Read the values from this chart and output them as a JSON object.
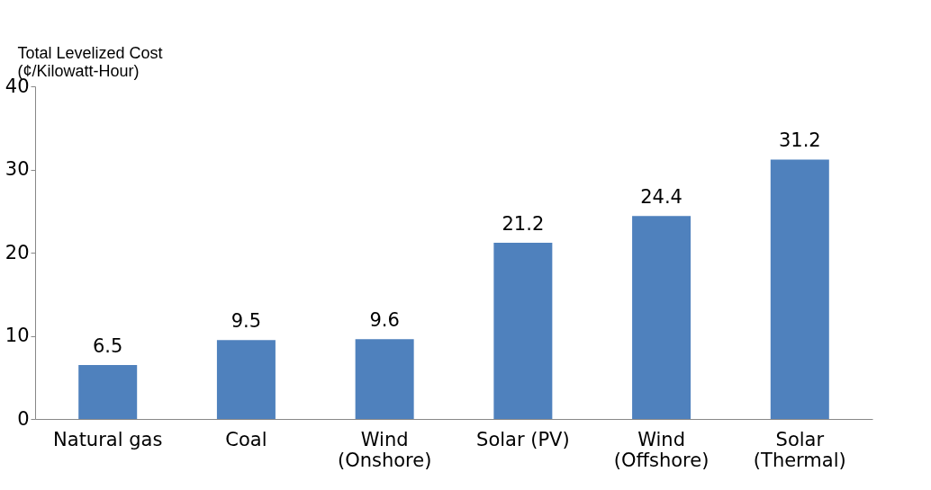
{
  "chart_data": {
    "type": "bar",
    "ylabel": "Total Levelized Cost\n(¢/Kilowatt-Hour)",
    "categories": [
      "Natural gas",
      "Coal",
      "Wind\n(Onshore)",
      "Solar (PV)",
      "Wind\n(Offshore)",
      "Solar\n(Thermal)"
    ],
    "values": [
      6.5,
      9.5,
      9.6,
      21.2,
      24.4,
      31.2
    ],
    "color": "#4f81bd",
    "ylim": [
      0,
      40
    ],
    "yticks": [
      0,
      10,
      20,
      30,
      40
    ],
    "grid": false,
    "data_labels": true
  }
}
